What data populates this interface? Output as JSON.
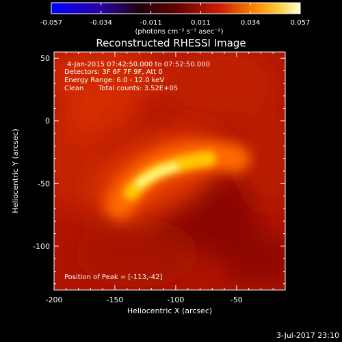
{
  "colorbar": {
    "ticks": [
      "-0.057",
      "-0.034",
      "-0.011",
      "0.011",
      "0.034",
      "0.057"
    ],
    "units_label": "(photons cm⁻² s⁻¹ asec⁻²)",
    "min": -0.057,
    "max": 0.057
  },
  "title": "Reconstructed RHESSI Image",
  "info": {
    "time_range": "4-Jan-2015 07:42:50.000 to 07:52:50.000",
    "detectors": "Detectors: 3F 6F 7F 9F, Att 0",
    "energy_range": "Energy Range: 6.0 - 12.0 keV",
    "clean": "Clean",
    "total_counts": "Total counts: 3.52E+05",
    "peak_position": "Position of Peak = [-113,-42]"
  },
  "axes": {
    "xlabel": "Heliocentric X (arcsec)",
    "ylabel": "Heliocentric Y (arcsec)",
    "xticks": [
      "-200",
      "-150",
      "-100",
      "-50"
    ],
    "yticks": [
      "50",
      "0",
      "-50",
      "-100"
    ],
    "x_ticks_values": [
      -200,
      -150,
      -100,
      -50
    ],
    "y_ticks_values": [
      50,
      0,
      -50,
      -100
    ],
    "xlim": [
      -200,
      -10
    ],
    "ylim": [
      -135,
      55
    ]
  },
  "peak": {
    "x": -113,
    "y": -42
  },
  "footer_date": "3-Jul-2017 23:10"
}
